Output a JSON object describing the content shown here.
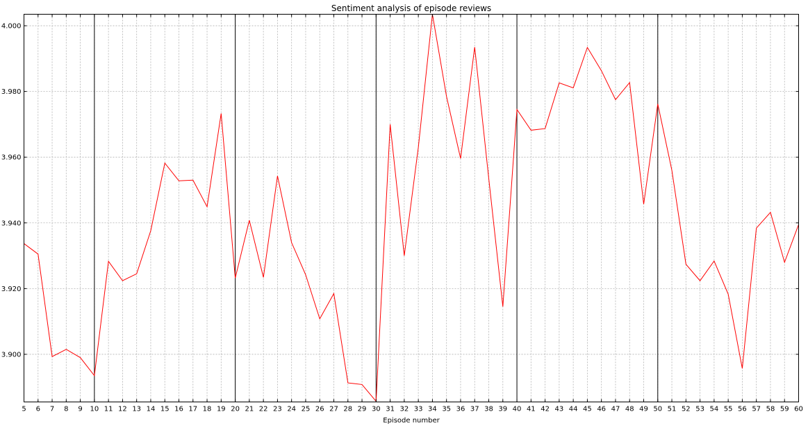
{
  "chart_data": {
    "type": "line",
    "title": "Sentiment analysis of episode reviews",
    "xlabel": "Episode number",
    "ylabel": "",
    "xlim": [
      5,
      60
    ],
    "ylim": [
      3.8855,
      4.0035
    ],
    "x_ticks": [
      5,
      6,
      7,
      8,
      9,
      10,
      11,
      12,
      13,
      14,
      15,
      16,
      17,
      18,
      19,
      20,
      21,
      22,
      23,
      24,
      25,
      26,
      27,
      28,
      29,
      30,
      31,
      32,
      33,
      34,
      35,
      36,
      37,
      38,
      39,
      40,
      41,
      42,
      43,
      44,
      45,
      46,
      47,
      48,
      49,
      50,
      51,
      52,
      53,
      54,
      55,
      56,
      57,
      58,
      59,
      60
    ],
    "y_ticks": [
      3.9,
      3.92,
      3.94,
      3.96,
      3.98,
      4.0
    ],
    "y_tick_labels": [
      "3.900",
      "3.920",
      "3.940",
      "3.960",
      "3.980",
      "4.000"
    ],
    "grid": true,
    "vertical_lines": [
      10,
      20,
      30,
      40,
      50
    ],
    "series": [
      {
        "color": "#ff0000",
        "x": [
          5,
          6,
          7,
          8,
          9,
          10,
          11,
          12,
          13,
          14,
          15,
          16,
          17,
          18,
          19,
          20,
          21,
          22,
          23,
          24,
          25,
          26,
          27,
          28,
          29,
          30,
          31,
          32,
          33,
          34,
          35,
          36,
          37,
          38,
          39,
          40,
          41,
          42,
          43,
          44,
          45,
          46,
          47,
          48,
          49,
          50,
          51,
          52,
          53,
          54,
          55,
          56,
          57,
          58,
          59,
          60
        ],
        "y": [
          3.9337,
          3.9305,
          3.8993,
          3.9015,
          3.899,
          3.8935,
          3.9283,
          3.9224,
          3.9245,
          3.9376,
          3.9582,
          3.9528,
          3.953,
          3.9449,
          3.9733,
          3.9232,
          3.9408,
          3.9234,
          3.9543,
          3.934,
          3.9242,
          3.9108,
          3.9185,
          3.8913,
          3.8908,
          3.8857,
          3.97,
          3.93,
          3.963,
          4.0035,
          3.9785,
          3.9596,
          3.9935,
          3.9535,
          3.9145,
          3.9745,
          3.9682,
          3.9687,
          3.9826,
          3.9811,
          3.9934,
          3.9863,
          3.9775,
          3.9827,
          3.9457,
          3.9762,
          3.956,
          3.9274,
          3.9224,
          3.9284,
          3.9183,
          3.8957,
          3.9384,
          3.9432,
          3.928,
          3.9395
        ]
      }
    ]
  }
}
